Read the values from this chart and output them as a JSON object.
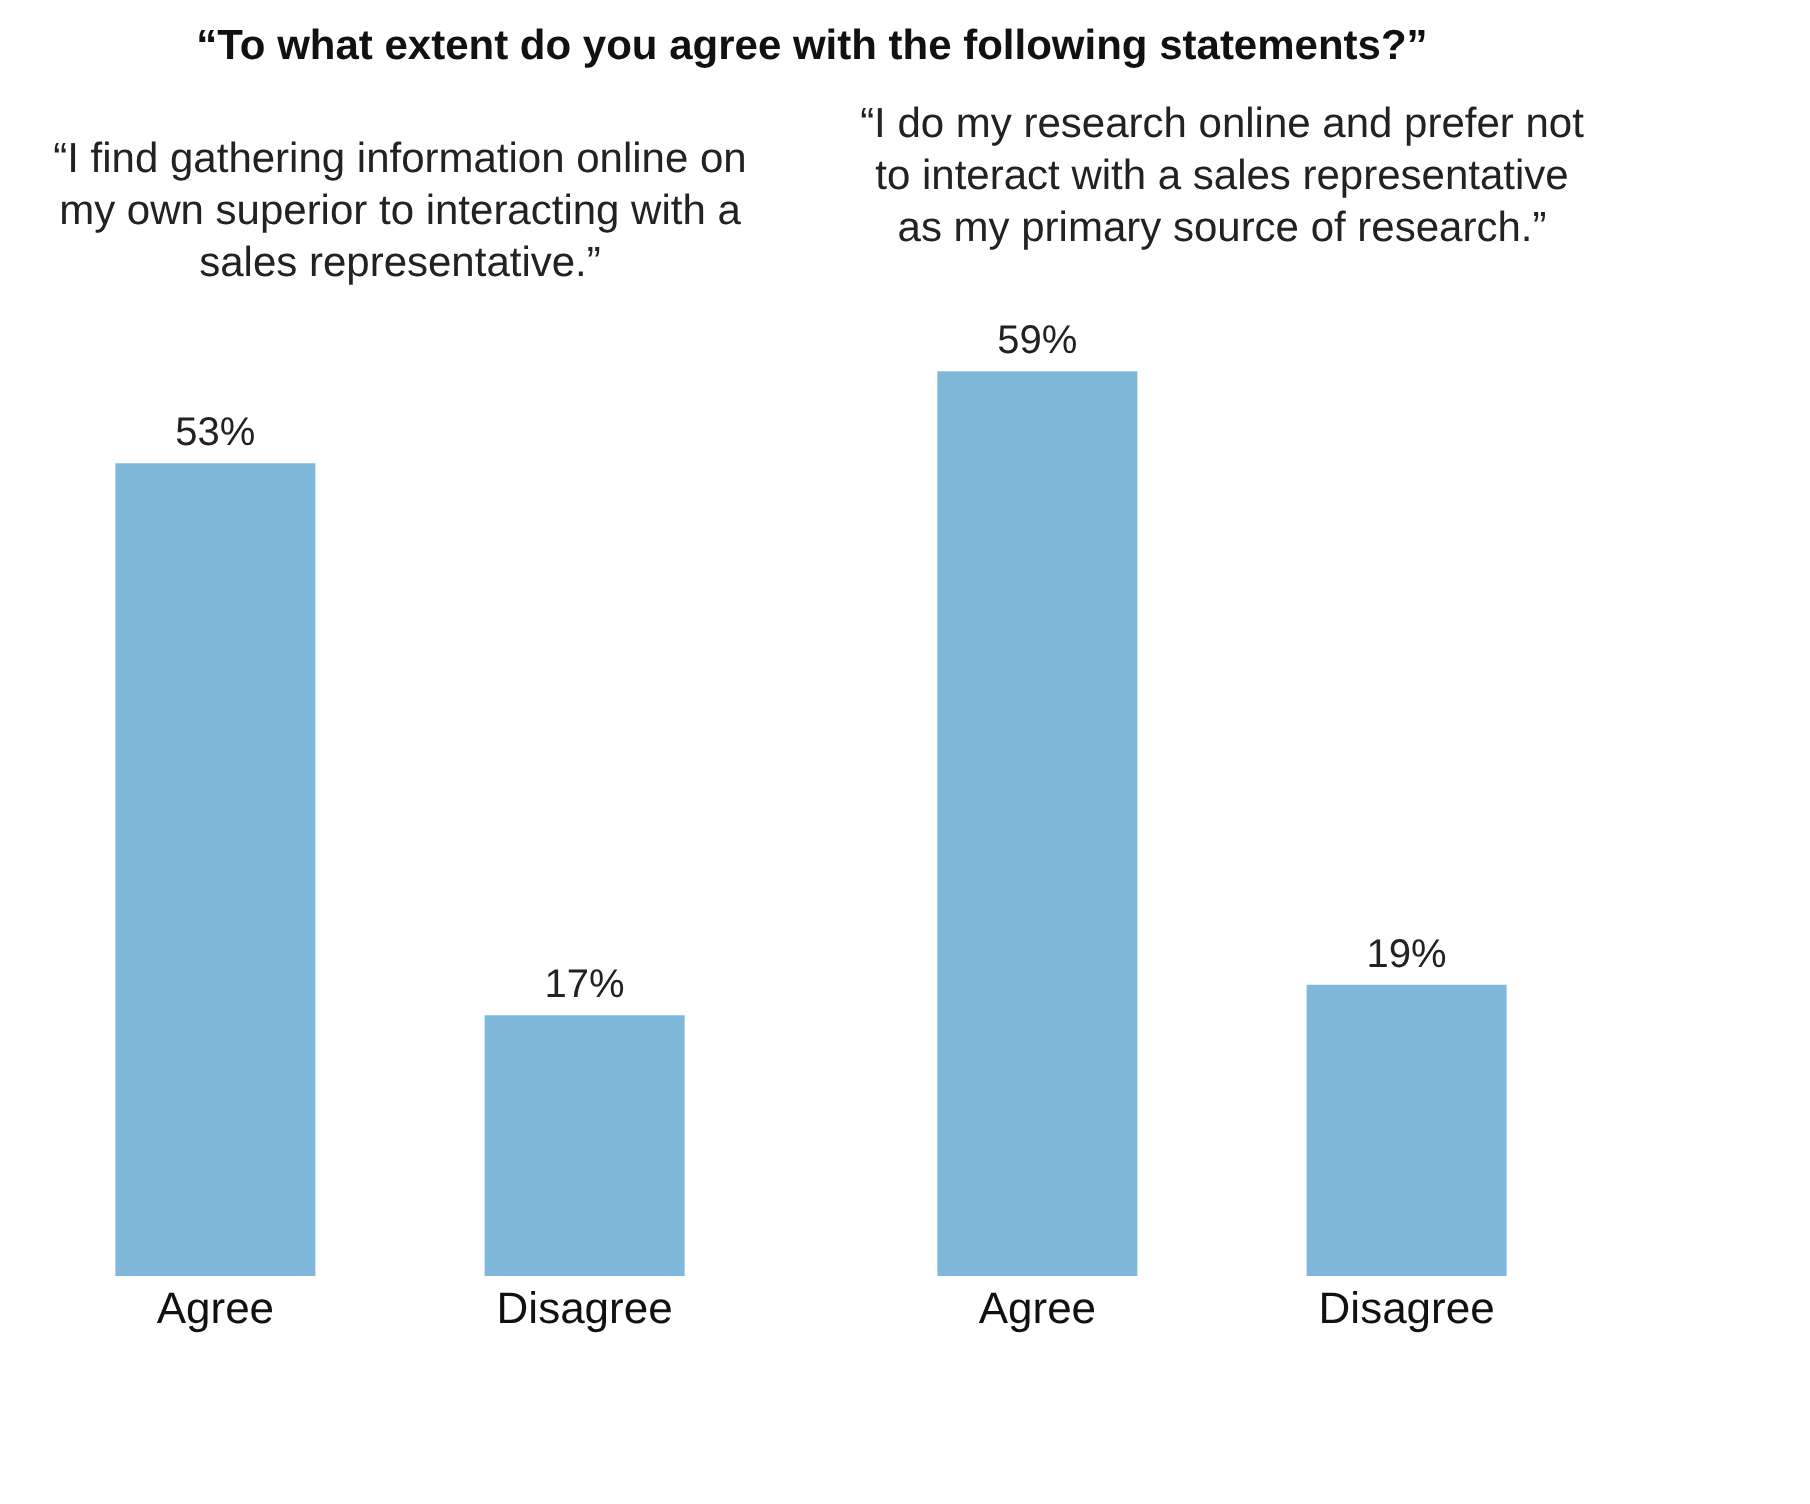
{
  "chart_data": [
    {
      "type": "bar",
      "title": "“To what extent do you agree with the following statements?”",
      "subtitle": "“I find gathering information online on my own superior to interacting with a sales representative.”",
      "categories": [
        "Agree",
        "Disagree"
      ],
      "values": [
        53,
        17
      ],
      "color": "#80b8dc",
      "value_labels": [
        "53%",
        "17%"
      ]
    },
    {
      "type": "bar",
      "subtitle": "“I do my research online and prefer not to interact with a sales representative as my primary source of research.”",
      "categories": [
        "Agree",
        "Disagree"
      ],
      "values": [
        59,
        19
      ],
      "color": "#80b8dc",
      "value_labels": [
        "59%",
        "19%"
      ]
    }
  ]
}
